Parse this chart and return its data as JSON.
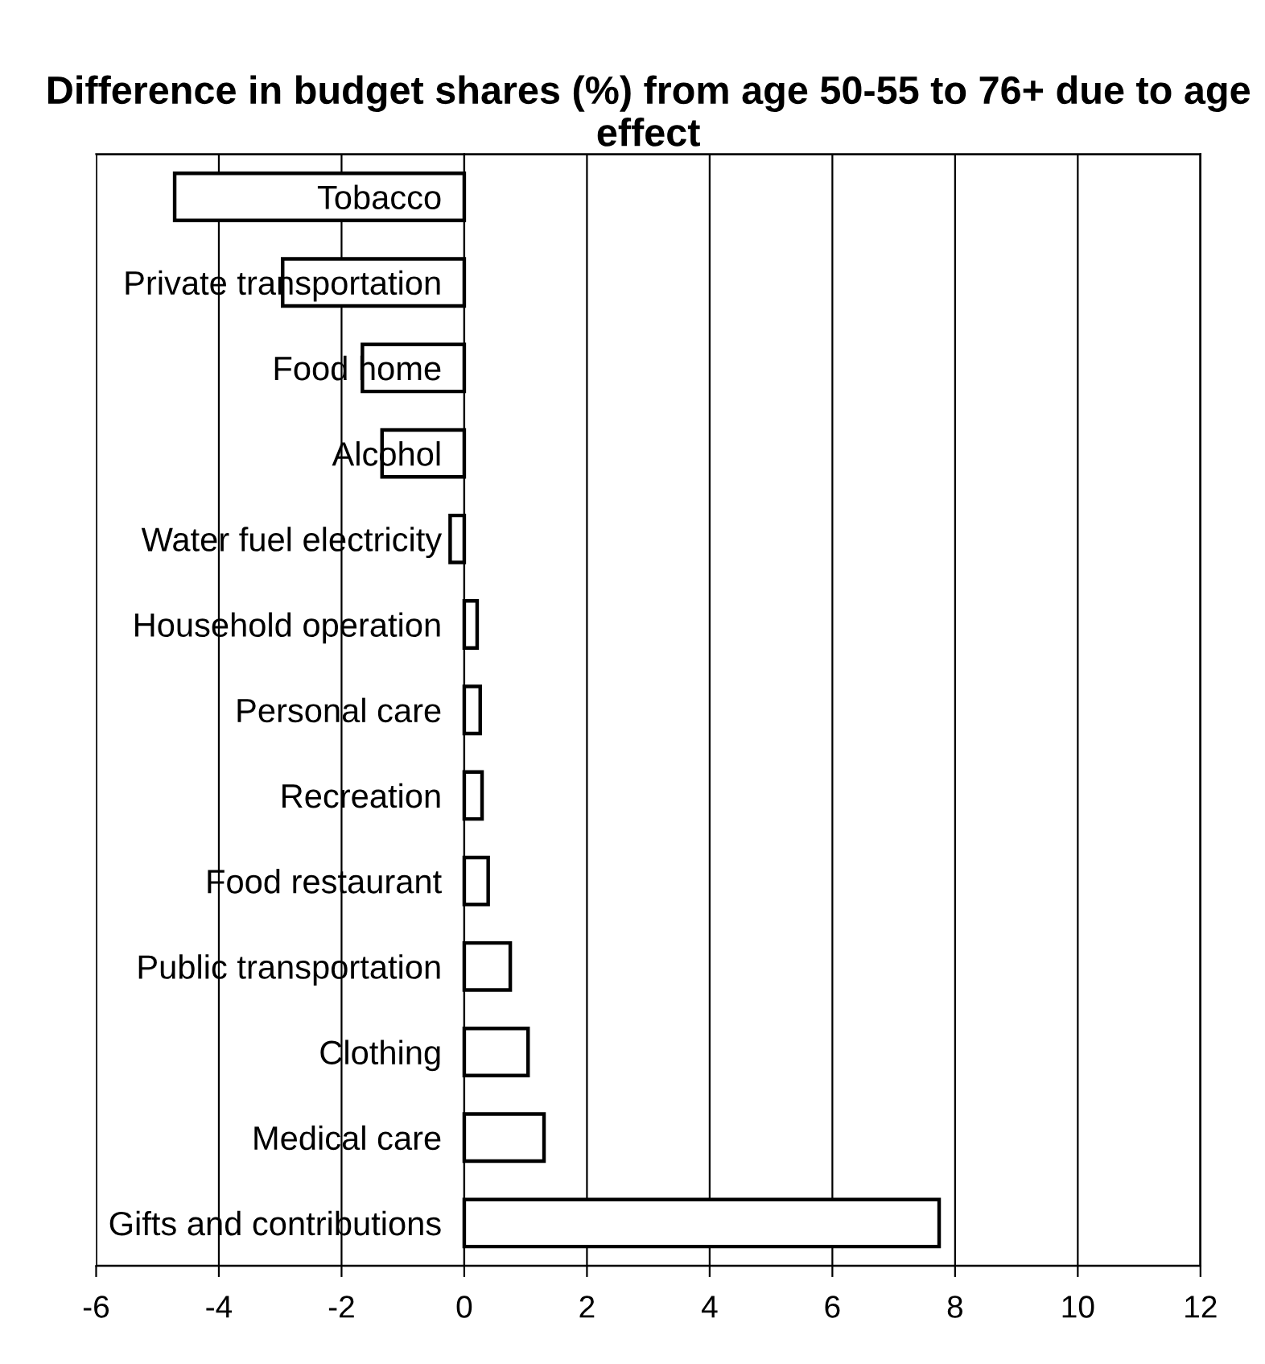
{
  "chart_data": {
    "type": "bar",
    "orientation": "horizontal",
    "title": "Difference in budget shares (%) from age 50-55 to 76+ due to age effect",
    "categories": [
      "Tobacco",
      "Private transportation",
      "Food home",
      "Alcohol",
      "Water fuel electricity",
      "Household operation",
      "Personal care",
      "Recreation",
      "Food restaurant",
      "Public transportation",
      "Clothing",
      "Medical care",
      "Gifts and contributions"
    ],
    "values": [
      -4.72,
      -2.96,
      -1.66,
      -1.34,
      -0.23,
      0.21,
      0.26,
      0.29,
      0.39,
      0.75,
      1.04,
      1.3,
      7.74
    ],
    "color": "#ffffff",
    "xlim": [
      -6,
      12
    ],
    "xticks": [
      -6,
      -4,
      -2,
      0,
      2,
      4,
      6,
      8,
      10,
      12
    ],
    "grid": "x"
  }
}
